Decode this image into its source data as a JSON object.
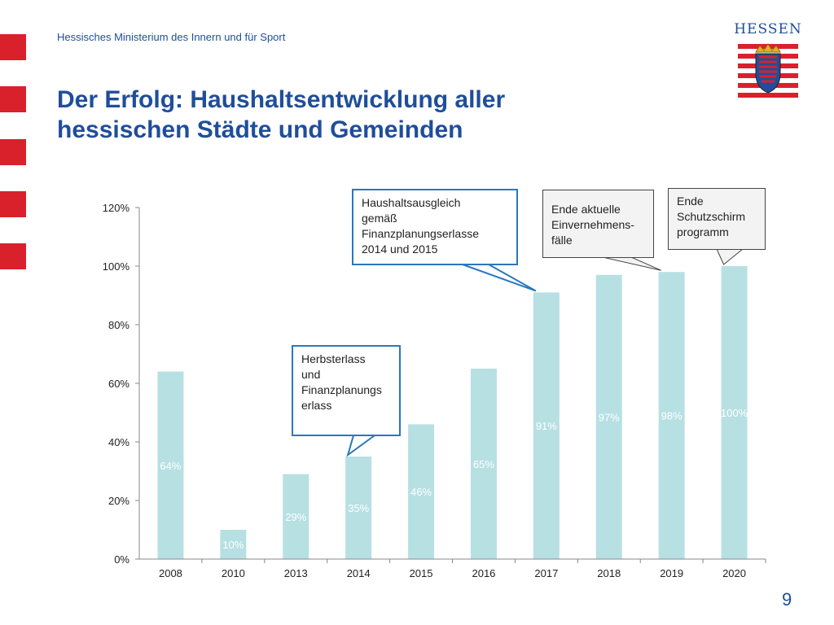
{
  "header": {
    "ministry": "Hessisches Ministerium des Innern und für Sport",
    "title_lines": [
      "Der Erfolg: Haushaltsentwicklung aller",
      "hessischen Städte und Gemeinden"
    ],
    "logo_text": "HESSEN",
    "accent_color": "#d9212c",
    "title_color": "#1f4e9a"
  },
  "chart_data": {
    "type": "bar",
    "categories": [
      "2008",
      "2010",
      "2013",
      "2014",
      "2015",
      "2016",
      "2017",
      "2018",
      "2019",
      "2020"
    ],
    "values": [
      64,
      10,
      29,
      35,
      46,
      65,
      91,
      97,
      98,
      100
    ],
    "data_labels": [
      "64%",
      "10%",
      "29%",
      "35%",
      "46%",
      "65%",
      "91%",
      "97%",
      "98%",
      "100%"
    ],
    "y_ticks": [
      "0%",
      "20%",
      "40%",
      "60%",
      "80%",
      "100%",
      "120%"
    ],
    "ylim": [
      0,
      120
    ],
    "grid": false,
    "legend": "none",
    "bar_color": "#b7e0e3",
    "label_color": "#ffffff",
    "annotations": [
      {
        "lines": [
          "Herbsterlass",
          "und",
          "Finanzplanungs",
          "erlass"
        ],
        "category": "2014",
        "style": "blue"
      },
      {
        "lines": [
          "Haushaltsausgleich",
          "gemäß",
          "Finanzplanungserlasse",
          "2014 und 2015"
        ],
        "category": "2017",
        "style": "blue"
      },
      {
        "lines": [
          "Ende aktuelle",
          "Einvernehmens-",
          "fälle"
        ],
        "category": "2019",
        "style": "grey"
      },
      {
        "lines": [
          "Ende",
          "Schutzschirm",
          "programm"
        ],
        "category": "2020",
        "style": "grey"
      }
    ]
  },
  "footer": {
    "page_number": "9"
  }
}
